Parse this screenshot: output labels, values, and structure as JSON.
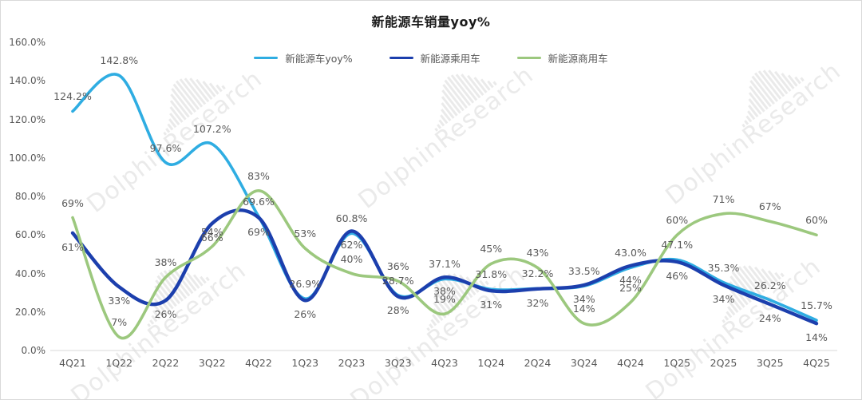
{
  "watermark": {
    "text": "DolphinResearch"
  },
  "chart_data": {
    "type": "line",
    "title": "新能源车销量yoy%",
    "smooth": true,
    "grid": false,
    "legend_position": "top",
    "categories": [
      "4Q21",
      "1Q22",
      "2Q22",
      "3Q22",
      "4Q22",
      "1Q23",
      "2Q23",
      "3Q23",
      "4Q23",
      "1Q24",
      "2Q24",
      "3Q24",
      "4Q24",
      "1Q25",
      "2Q25",
      "3Q25",
      "4Q25"
    ],
    "y_axis": {
      "min": 0,
      "max": 160,
      "step": 20,
      "ticks": [
        "160.0%",
        "140.0%",
        "120.0%",
        "100.0%",
        "80.0%",
        "60.0%",
        "40.0%",
        "20.0%",
        "0.0%"
      ]
    },
    "series": [
      {
        "name": "新能源车yoy%",
        "color": "#2fadе2",
        "color_hex": "#2fade2",
        "label_position": "above",
        "values": [
          124.2,
          142.8,
          97.6,
          107.2,
          69.6,
          26.9,
          60.8,
          28.7,
          37.1,
          31.8,
          32.2,
          33.5,
          43.0,
          47.1,
          35.3,
          26.2,
          15.7
        ],
        "labels": [
          "124.2%",
          "142.8%",
          "97.6%",
          "107.2%",
          "69.6%",
          "26.9%",
          "60.8%",
          "28.7%",
          "37.1%",
          "31.8%",
          "32.2%",
          "33.5%",
          "43.0%",
          "47.1%",
          "35.3%",
          "26.2%",
          "15.7%"
        ]
      },
      {
        "name": "新能源乘用车",
        "color_hex": "#1c3fad",
        "label_position": "below",
        "values": [
          61,
          33,
          26,
          66,
          69,
          26,
          62,
          28,
          38,
          31,
          32,
          34,
          44,
          46,
          34,
          24,
          14
        ],
        "labels": [
          "61%",
          "33%",
          "26%",
          "66%",
          "69%",
          "26%",
          "62%",
          "28%",
          "38%",
          "31%",
          "32%",
          "34%",
          "44%",
          "46%",
          "34%",
          "24%",
          "14%"
        ]
      },
      {
        "name": "新能源商用车",
        "color_hex": "#9cc87e",
        "label_position": "above",
        "values": [
          69,
          7,
          38,
          54,
          83,
          53,
          40,
          36,
          19,
          45,
          43,
          14,
          25,
          60,
          71,
          67,
          60
        ],
        "labels": [
          "69%",
          "7%",
          "38%",
          "54%",
          "83%",
          "53%",
          "40%",
          "36%",
          "19%",
          "45%",
          "43%",
          "14%",
          "25%",
          "60%",
          "71%",
          "67%",
          "60%"
        ]
      }
    ],
    "colors": {
      "axis_line": "#d9d9d9",
      "tick_text": "#595959",
      "data_label": "#595959",
      "title_text": "#1a1a1a"
    }
  }
}
